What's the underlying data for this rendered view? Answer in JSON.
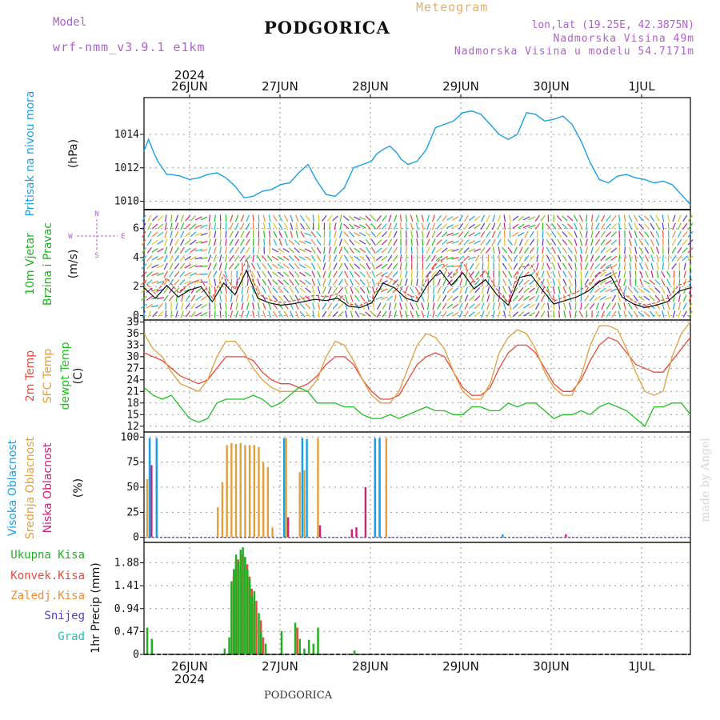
{
  "header": {
    "model_label": "Model",
    "model_name": "wrf-nmm_v3.9.1 e1km",
    "title": "PODGORICA",
    "meteogram": "Meteogram",
    "lonlat": "lon,lat (19.25E, 42.3875N)",
    "elev": "Nadmorska Visina 49m",
    "elev_model": "Nadmorska Visina u modelu 54.7171m",
    "year_top": "2024",
    "year_bottom": "2024",
    "footer": "PODGORICA",
    "watermark": "made by Angel"
  },
  "colors": {
    "pressure": "#1aa0e6",
    "temp": "#e84a3c",
    "sfc": "#e0a040",
    "dewpt": "#22c022",
    "high_cloud": "#1aa0e6",
    "mid_cloud": "#e0a040",
    "low_cloud": "#d0207a",
    "precip_total": "#22b022",
    "precip_conv": "#e84a3c",
    "precip_frz": "#f08a30",
    "snow": "#5a3ad0",
    "graupel": "#22c0b0",
    "wind_label": "#22b022",
    "model": "#b060d0",
    "meteogram": "#e8b060"
  },
  "chart_data": [
    {
      "type": "line",
      "panel": "pressure",
      "ylabel": "(hPa)",
      "series_label": "Pritisak na nivou mora",
      "ylim": [
        1009.5,
        1016.2
      ],
      "yticks": [
        1010,
        1012,
        1014
      ],
      "x_days": [
        "26JUN",
        "27JUN",
        "28JUN",
        "29JUN",
        "30JUN",
        "1JUL"
      ],
      "x": [
        0,
        0.1,
        0.2,
        0.3,
        0.5,
        0.6,
        0.8,
        1.0,
        1.2,
        1.4,
        1.6,
        1.8,
        2.0,
        2.2,
        2.4,
        2.6,
        2.8,
        3.0,
        3.2,
        3.4,
        3.6,
        3.8,
        4.0,
        4.2,
        4.4,
        4.6,
        4.8,
        5.0,
        5.1,
        5.25,
        5.4,
        5.55,
        5.65,
        5.8,
        6.0,
        6.2,
        6.4,
        6.6,
        6.8,
        7.0,
        7.2,
        7.4,
        7.6,
        7.8,
        8.0,
        8.2,
        8.4,
        8.6,
        8.8,
        9.0,
        9.2,
        9.4,
        9.6,
        9.8,
        10.0,
        10.2,
        10.4,
        10.6,
        10.8,
        11.0,
        11.2,
        11.4,
        11.5,
        11.6,
        11.7,
        11.8,
        12.0
      ],
      "values": [
        1013.0,
        1013.7,
        1013.0,
        1012.4,
        1011.6,
        1011.6,
        1011.5,
        1011.3,
        1011.4,
        1011.6,
        1011.7,
        1011.4,
        1010.9,
        1010.2,
        1010.3,
        1010.6,
        1010.7,
        1011.0,
        1011.1,
        1011.7,
        1012.2,
        1011.2,
        1010.4,
        1010.3,
        1010.8,
        1012.0,
        1012.2,
        1012.4,
        1012.8,
        1013.1,
        1013.3,
        1012.9,
        1012.5,
        1012.2,
        1012.4,
        1013.1,
        1014.4,
        1014.6,
        1014.8,
        1015.3,
        1015.4,
        1015.2,
        1014.6,
        1014.0,
        1013.7,
        1014.0,
        1015.3,
        1015.2,
        1014.8,
        1014.9,
        1015.1,
        1014.6,
        1013.6,
        1012.3,
        1011.3,
        1011.1,
        1011.5,
        1011.6,
        1011.4,
        1011.3,
        1011.1,
        1011.2,
        1011.1,
        1011.0,
        1010.7,
        1010.4,
        1009.8
      ]
    },
    {
      "type": "line",
      "panel": "wind",
      "ylabel": "(m/s)",
      "series_label": "10m Vjetar",
      "series_label_2": "Brzina i Pravac",
      "compass": {
        "n": "N",
        "s": "S",
        "w": "W",
        "e": "E"
      },
      "ylim": [
        -0.3,
        7.3
      ],
      "yticks": [
        0,
        2,
        4,
        6
      ],
      "x": [
        0,
        0.25,
        0.5,
        0.75,
        1.0,
        1.25,
        1.5,
        1.75,
        2.0,
        2.25,
        2.5,
        2.75,
        3.0,
        3.25,
        3.5,
        3.75,
        4.0,
        4.25,
        4.5,
        4.75,
        5.0,
        5.25,
        5.5,
        5.75,
        6.0,
        6.25,
        6.5,
        6.75,
        7.0,
        7.25,
        7.5,
        7.75,
        8.0,
        8.25,
        8.5,
        8.75,
        9.0,
        9.25,
        9.5,
        9.75,
        10.0,
        10.25,
        10.5,
        10.75,
        11.0,
        11.25,
        11.5,
        11.75,
        12.0
      ],
      "values": [
        2.4,
        1.5,
        2.6,
        1.6,
        2.2,
        2.5,
        1.2,
        2.8,
        1.8,
        3.9,
        1.5,
        1.1,
        0.9,
        1.0,
        1.2,
        1.4,
        1.3,
        1.5,
        0.8,
        0.7,
        1.1,
        2.8,
        2.4,
        1.5,
        1.2,
        2.8,
        3.9,
        2.6,
        3.7,
        2.3,
        3.1,
        1.8,
        0.9,
        3.3,
        3.5,
        2.2,
        1.0,
        1.3,
        1.6,
        2.1,
        2.9,
        3.4,
        1.6,
        1.0,
        0.7,
        0.9,
        1.2,
        2.1,
        2.4
      ],
      "directions_deg": [
        220,
        240,
        200,
        210,
        230,
        250,
        190,
        180,
        200,
        200,
        170,
        160,
        140,
        150,
        130,
        160,
        200,
        210,
        150,
        130,
        150,
        230,
        210,
        180,
        170,
        200,
        220,
        240,
        210,
        230,
        200,
        190,
        160,
        220,
        230,
        200,
        160,
        150,
        170,
        200,
        220,
        230,
        180,
        160,
        140,
        150,
        170,
        200,
        210
      ]
    },
    {
      "type": "line",
      "panel": "temperature",
      "ylabel": "(C)",
      "series_label": "2m Temp",
      "series_label_2": "SFC Temp",
      "series_label_3": "dewpt Temp",
      "ylim": [
        10.5,
        39.5
      ],
      "yticks": [
        12,
        15,
        18,
        21,
        24,
        27,
        30,
        33,
        36,
        39
      ],
      "x": [
        0,
        0.2,
        0.4,
        0.6,
        0.8,
        1.0,
        1.2,
        1.4,
        1.6,
        1.8,
        2.0,
        2.2,
        2.4,
        2.6,
        2.8,
        3.0,
        3.2,
        3.4,
        3.6,
        3.8,
        4.0,
        4.2,
        4.4,
        4.6,
        4.8,
        5.0,
        5.2,
        5.4,
        5.6,
        5.8,
        6.0,
        6.2,
        6.4,
        6.6,
        6.8,
        7.0,
        7.2,
        7.4,
        7.6,
        7.8,
        8.0,
        8.2,
        8.4,
        8.6,
        8.8,
        9.0,
        9.2,
        9.4,
        9.6,
        9.8,
        10.0,
        10.2,
        10.4,
        10.6,
        10.8,
        11.0,
        11.2,
        11.4,
        11.6,
        11.8,
        12.0
      ],
      "series": [
        {
          "name": "2m Temp",
          "values": [
            31,
            30,
            29,
            27,
            25,
            24,
            23,
            24,
            27,
            30,
            30,
            30,
            29,
            26,
            24,
            23,
            23,
            22,
            23,
            25,
            28,
            30,
            30,
            28,
            24,
            21,
            19,
            19,
            20,
            24,
            28,
            30,
            31,
            30,
            26,
            22,
            20,
            20,
            22,
            27,
            31,
            33,
            33,
            31,
            27,
            23,
            21,
            21,
            24,
            29,
            33,
            35,
            34,
            31,
            28,
            27,
            26,
            26,
            29,
            32,
            35
          ]
        },
        {
          "name": "SFC Temp",
          "values": [
            36,
            32,
            30,
            26,
            23,
            22,
            21,
            24,
            30,
            34,
            34,
            31,
            27,
            24,
            22,
            21,
            21,
            21,
            21,
            24,
            30,
            34,
            33,
            29,
            24,
            20,
            18,
            18,
            21,
            27,
            33,
            36,
            35,
            32,
            26,
            21,
            19,
            19,
            23,
            31,
            35,
            37,
            36,
            32,
            26,
            22,
            20,
            20,
            25,
            33,
            38,
            38,
            37,
            32,
            26,
            21,
            20,
            21,
            30,
            36,
            39
          ]
        },
        {
          "name": "dewpt Temp",
          "values": [
            22,
            20,
            19,
            20,
            17,
            14,
            13,
            14,
            18,
            19,
            19,
            19,
            20,
            19,
            17,
            18,
            20,
            22,
            21,
            18,
            18,
            18,
            17,
            17,
            15,
            14,
            14,
            15,
            14,
            15,
            16,
            17,
            16,
            16,
            15,
            15,
            17,
            17,
            16,
            16,
            18,
            17,
            18,
            18,
            16,
            14,
            15,
            15,
            16,
            15,
            17,
            18,
            17,
            16,
            14,
            12,
            17,
            17,
            18,
            18,
            15
          ]
        }
      ]
    },
    {
      "type": "bar",
      "panel": "clouds",
      "ylabel": "(%)",
      "series_label": "Visoka Oblacnost",
      "series_label_2": "Srednja Oblacnost",
      "series_label_3": "Niska Oblacnost",
      "ylim": [
        -5,
        105
      ],
      "yticks": [
        0,
        25,
        50,
        75,
        100
      ],
      "x": [
        0.05,
        0.1,
        0.15,
        0.3,
        1.6,
        1.7,
        1.8,
        1.9,
        2.0,
        2.1,
        2.2,
        2.3,
        2.4,
        2.5,
        2.6,
        2.7,
        2.8,
        3.1,
        3.4,
        3.5,
        3.6,
        3.8,
        4.5,
        4.6,
        4.8,
        5.05,
        5.1,
        5.15,
        5.2,
        5.3,
        7.9,
        9.2
      ],
      "series": [
        {
          "name": "Visoka Oblacnost",
          "values": [
            0,
            0,
            99,
            99,
            0,
            0,
            0,
            0,
            0,
            0,
            0,
            0,
            0,
            0,
            0,
            0,
            0,
            99,
            0,
            99,
            98,
            0,
            0,
            0,
            0,
            0,
            99,
            0,
            99,
            0,
            3,
            0
          ]
        },
        {
          "name": "Srednja Oblacnost",
          "values": [
            58,
            99,
            0,
            0,
            30,
            55,
            92,
            94,
            93,
            94,
            92,
            92,
            92,
            90,
            75,
            70,
            10,
            99,
            65,
            67,
            0,
            99,
            0,
            0,
            0,
            99,
            0,
            99,
            0,
            99,
            0,
            0
          ]
        },
        {
          "name": "Niska Oblacnost",
          "values": [
            0,
            72,
            0,
            0,
            0,
            0,
            0,
            0,
            0,
            0,
            0,
            0,
            0,
            0,
            0,
            0,
            0,
            20,
            0,
            0,
            0,
            12,
            8,
            10,
            50,
            0,
            0,
            0,
            0,
            0,
            0,
            3
          ]
        }
      ]
    },
    {
      "type": "bar",
      "panel": "precip",
      "ylabel": "1hr Precip (mm)",
      "series_label": "Ukupna Kisa",
      "series_label_2": "Konvek.Kisa",
      "series_label_3": "Zaledj.Kisa",
      "series_label_4": "Snijeg",
      "series_label_5": "Grad",
      "ylim": [
        0,
        2.3
      ],
      "yticks": [
        0,
        0.47,
        0.94,
        1.41,
        1.88
      ],
      "ytick_labels": [
        "0",
        "0.47",
        "0.94",
        "1.41",
        "1.88"
      ],
      "x": [
        0.05,
        0.15,
        1.75,
        1.85,
        1.9,
        1.95,
        2.0,
        2.05,
        2.1,
        2.15,
        2.2,
        2.25,
        2.3,
        2.35,
        2.4,
        2.5,
        2.55,
        2.65,
        3.0,
        3.3,
        3.4,
        3.5,
        3.6,
        3.7,
        3.8,
        4.6
      ],
      "series": [
        {
          "name": "Ukupna Kisa",
          "values": [
            0.55,
            0.32,
            0.12,
            0.35,
            1.5,
            1.75,
            2.05,
            1.9,
            2.15,
            2.2,
            2.0,
            1.75,
            1.55,
            1.2,
            1.3,
            0.85,
            0.45,
            0.22,
            0.48,
            0.65,
            0.32,
            0.12,
            0.3,
            0.22,
            0.55,
            0.08
          ]
        },
        {
          "name": "Konvek.Kisa",
          "values": [
            0,
            0,
            0,
            0,
            1.6,
            1.85,
            1.95,
            1.8,
            2.05,
            2.0,
            1.85,
            1.6,
            1.35,
            1.05,
            1.1,
            0.7,
            0.35,
            0,
            0,
            0.55,
            0,
            0,
            0,
            0,
            0,
            0
          ]
        }
      ]
    }
  ]
}
